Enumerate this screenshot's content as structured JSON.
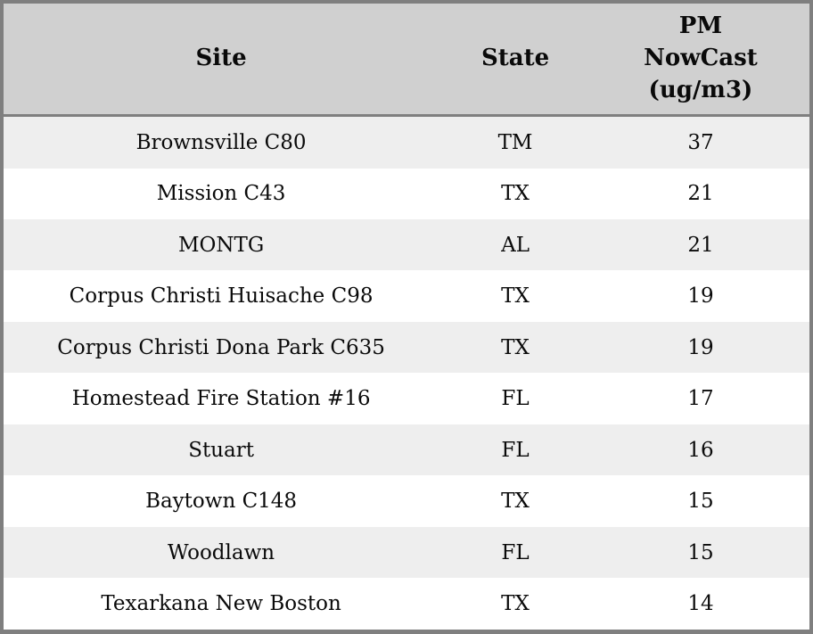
{
  "table": {
    "columns": {
      "site": "Site",
      "state": "State",
      "value": "PM\nNowCast\n(ug/m3)"
    },
    "rows": [
      {
        "site": "Brownsville C80",
        "state": "TM",
        "value": "37"
      },
      {
        "site": "Mission C43",
        "state": "TX",
        "value": "21"
      },
      {
        "site": "MONTG",
        "state": "AL",
        "value": "21"
      },
      {
        "site": "Corpus Christi Huisache C98",
        "state": "TX",
        "value": "19"
      },
      {
        "site": "Corpus Christi Dona Park C635",
        "state": "TX",
        "value": "19"
      },
      {
        "site": "Homestead Fire Station #16",
        "state": "FL",
        "value": "17"
      },
      {
        "site": "Stuart",
        "state": "FL",
        "value": "16"
      },
      {
        "site": "Baytown C148",
        "state": "TX",
        "value": "15"
      },
      {
        "site": "Woodlawn",
        "state": "FL",
        "value": "15"
      },
      {
        "site": "Texarkana New Boston",
        "state": "TX",
        "value": "14"
      }
    ]
  },
  "colors": {
    "border": "#7f7f7f",
    "header_background": "#d0d0d0",
    "row_stripe": "#eeeeee",
    "row_plain": "#ffffff",
    "text": "#0a0a0a"
  },
  "chart_data": {
    "type": "table",
    "title": "",
    "columns": [
      "Site",
      "State",
      "PM NowCast (ug/m3)"
    ],
    "rows": [
      [
        "Brownsville C80",
        "TM",
        37
      ],
      [
        "Mission C43",
        "TX",
        21
      ],
      [
        "MONTG",
        "AL",
        21
      ],
      [
        "Corpus Christi Huisache C98",
        "TX",
        19
      ],
      [
        "Corpus Christi Dona Park C635",
        "TX",
        19
      ],
      [
        "Homestead Fire Station #16",
        "FL",
        17
      ],
      [
        "Stuart",
        "FL",
        16
      ],
      [
        "Baytown C148",
        "TX",
        15
      ],
      [
        "Woodlawn",
        "FL",
        15
      ],
      [
        "Texarkana New Boston",
        "TX",
        14
      ]
    ],
    "layout": {
      "header_row": true,
      "striped": true,
      "cell_align": "center"
    }
  }
}
